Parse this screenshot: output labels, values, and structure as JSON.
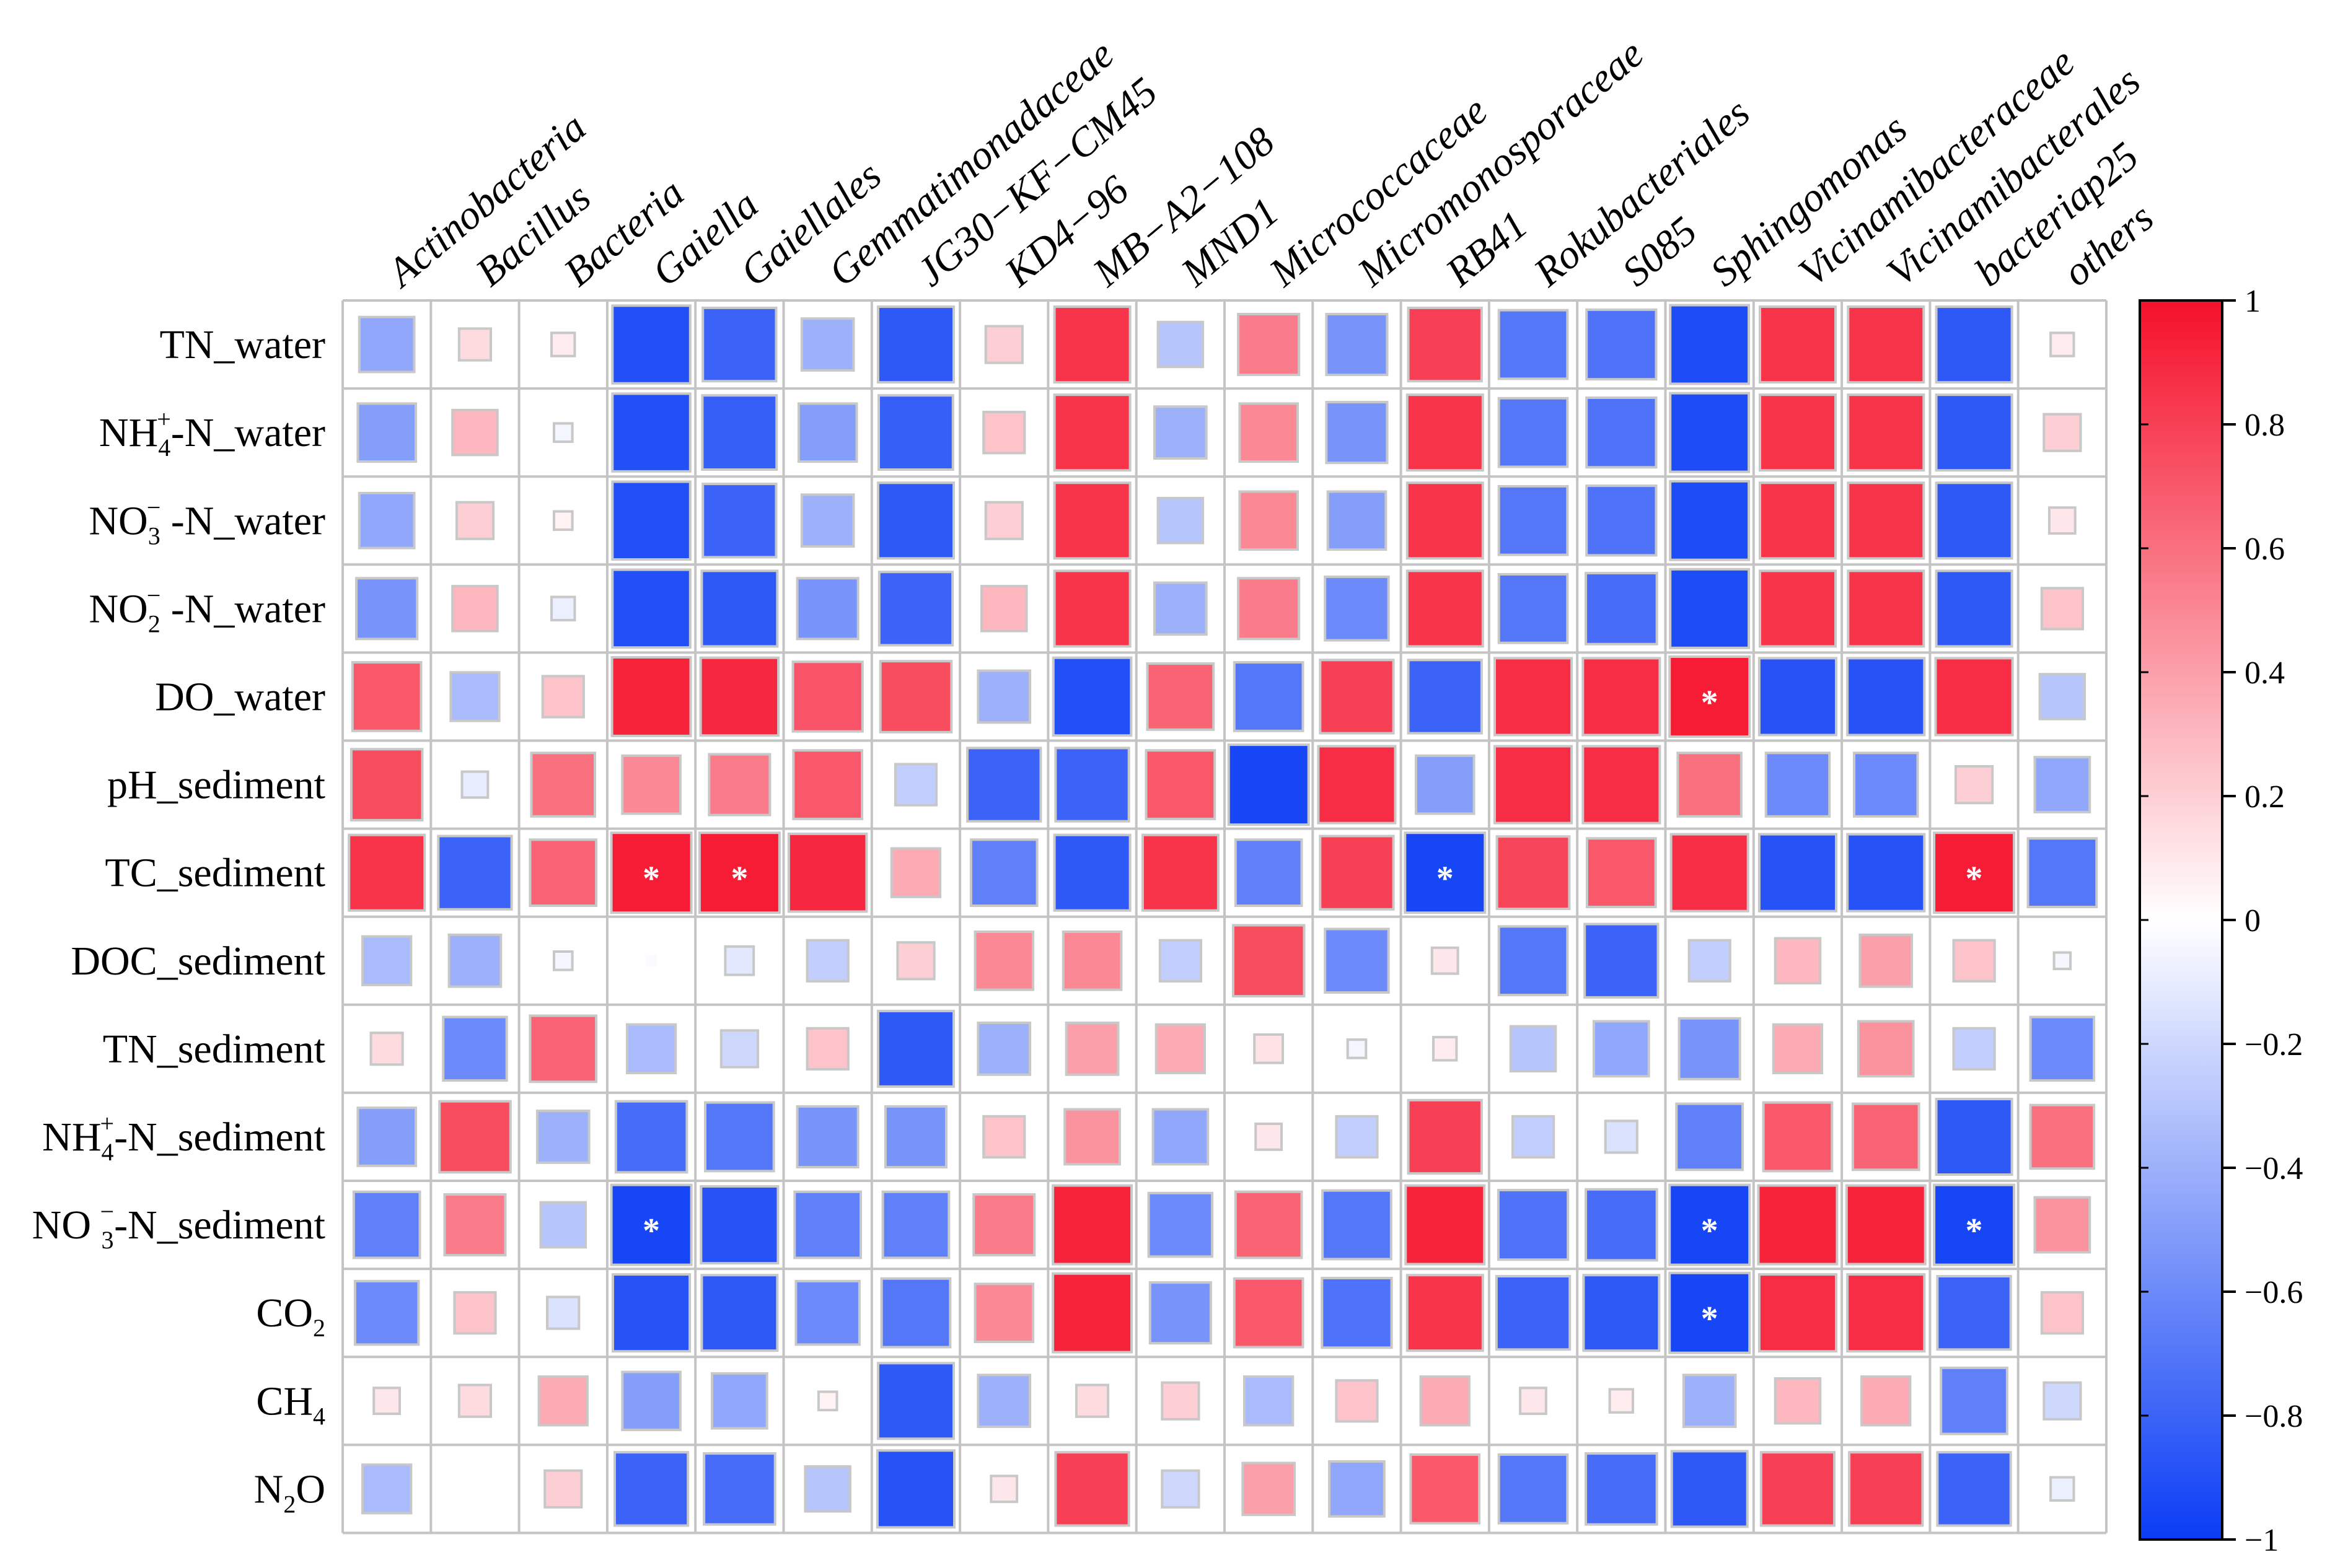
{
  "chart_data": {
    "type": "heatmap",
    "title": "",
    "xlabel": "",
    "ylabel": "",
    "columns": [
      "Actinobacteria",
      "Bacillus",
      "Bacteria",
      "Gaiella",
      "Gaiellales",
      "Gemmatimonadaceae",
      "JG30−KF−CM45",
      "KD4−96",
      "MB−A2−108",
      "MND1",
      "Micrococcaceae",
      "Micromonosporaceae",
      "RB41",
      "Rokubacteriales",
      "S085",
      "Sphingomonas",
      "Vicinamibacteraceae",
      "Vicinamibacterales",
      "bacteriap25",
      "others"
    ],
    "rows": [
      {
        "base": "TN_water",
        "sub": "",
        "sup": "",
        "suffix": ""
      },
      {
        "base": "NH",
        "sub": "4",
        "sup": "+",
        "suffix": "-N_water"
      },
      {
        "base": "NO",
        "sub": "3",
        "sup": "−",
        "suffix": " -N_water"
      },
      {
        "base": "NO",
        "sub": "2",
        "sup": "−",
        "suffix": " -N_water"
      },
      {
        "base": "DO_water",
        "sub": "",
        "sup": "",
        "suffix": ""
      },
      {
        "base": "pH_sediment",
        "sub": "",
        "sup": "",
        "suffix": ""
      },
      {
        "base": "TC_sediment",
        "sub": "",
        "sup": "",
        "suffix": ""
      },
      {
        "base": "DOC_sediment",
        "sub": "",
        "sup": "",
        "suffix": ""
      },
      {
        "base": "TN_sediment",
        "sub": "",
        "sup": "",
        "suffix": ""
      },
      {
        "base": "NH",
        "sub": "4",
        "sup": "+",
        "suffix": "-N_sediment"
      },
      {
        "base": "NO ",
        "sub": "3",
        "sup": "−",
        "suffix": "-N_sediment"
      },
      {
        "base": "CO",
        "sub": "2",
        "sup": "",
        "suffix": ""
      },
      {
        "base": "CH",
        "sub": "4",
        "sup": "",
        "suffix": ""
      },
      {
        "base": "N",
        "sub": "2",
        "sup": "",
        "suffix": "O"
      }
    ],
    "values": [
      [
        -0.45,
        0.15,
        0.08,
        -0.9,
        -0.8,
        -0.4,
        -0.85,
        0.2,
        0.85,
        -0.3,
        0.55,
        -0.55,
        0.8,
        -0.7,
        -0.72,
        -0.92,
        0.85,
        0.85,
        -0.85,
        0.08
      ],
      [
        -0.5,
        0.3,
        -0.05,
        -0.9,
        -0.82,
        -0.5,
        -0.82,
        0.25,
        0.85,
        -0.4,
        0.5,
        -0.55,
        0.85,
        -0.7,
        -0.72,
        -0.92,
        0.85,
        0.85,
        -0.85,
        0.2
      ],
      [
        -0.45,
        0.2,
        0.05,
        -0.9,
        -0.8,
        -0.4,
        -0.85,
        0.2,
        0.85,
        -0.3,
        0.5,
        -0.5,
        0.85,
        -0.7,
        -0.72,
        -0.92,
        0.85,
        0.85,
        -0.85,
        0.1
      ],
      [
        -0.55,
        0.3,
        -0.08,
        -0.9,
        -0.85,
        -0.55,
        -0.8,
        0.3,
        0.85,
        -0.4,
        0.55,
        -0.6,
        0.85,
        -0.7,
        -0.75,
        -0.92,
        0.85,
        0.85,
        -0.85,
        0.25
      ],
      [
        0.7,
        -0.35,
        0.25,
        0.92,
        0.9,
        0.72,
        0.75,
        -0.4,
        -0.9,
        0.65,
        -0.7,
        0.8,
        -0.8,
        0.88,
        0.88,
        0.95,
        -0.88,
        -0.88,
        0.88,
        -0.3
      ],
      [
        0.75,
        -0.1,
        0.6,
        0.5,
        0.55,
        0.7,
        -0.25,
        -0.8,
        -0.8,
        0.7,
        -0.95,
        0.88,
        -0.5,
        0.88,
        0.88,
        0.6,
        -0.6,
        -0.6,
        0.2,
        -0.45
      ],
      [
        0.85,
        -0.8,
        0.65,
        0.95,
        0.95,
        0.9,
        0.35,
        -0.65,
        -0.85,
        0.85,
        -0.65,
        0.8,
        -0.95,
        0.78,
        0.7,
        0.88,
        -0.88,
        -0.88,
        0.95,
        -0.7
      ],
      [
        -0.35,
        -0.4,
        -0.05,
        -0.02,
        -0.12,
        -0.25,
        0.2,
        0.5,
        0.5,
        -0.25,
        0.75,
        -0.6,
        0.1,
        -0.7,
        -0.8,
        -0.25,
        0.3,
        0.4,
        0.25,
        -0.04
      ],
      [
        0.15,
        -0.6,
        0.65,
        -0.35,
        -0.2,
        0.25,
        -0.85,
        -0.4,
        0.4,
        0.35,
        0.12,
        -0.05,
        0.08,
        -0.3,
        -0.45,
        -0.55,
        0.35,
        0.45,
        -0.25,
        -0.6
      ],
      [
        -0.5,
        0.75,
        -0.4,
        -0.75,
        -0.7,
        -0.55,
        -0.55,
        0.25,
        0.45,
        -0.45,
        0.1,
        -0.25,
        0.8,
        -0.25,
        -0.15,
        -0.65,
        0.7,
        0.65,
        -0.85,
        0.6
      ],
      [
        -0.65,
        0.55,
        -0.3,
        -0.95,
        -0.88,
        -0.65,
        -0.65,
        0.55,
        0.92,
        -0.6,
        0.65,
        -0.7,
        0.92,
        -0.72,
        -0.75,
        -0.95,
        0.92,
        0.92,
        -0.95,
        0.45
      ],
      [
        -0.6,
        0.25,
        -0.15,
        -0.88,
        -0.85,
        -0.6,
        -0.7,
        0.5,
        0.92,
        -0.55,
        0.7,
        -0.72,
        0.85,
        -0.8,
        -0.85,
        -0.95,
        0.88,
        0.88,
        -0.8,
        0.25
      ],
      [
        0.1,
        0.15,
        0.35,
        -0.5,
        -0.45,
        0.05,
        -0.85,
        -0.4,
        0.15,
        0.2,
        -0.35,
        0.25,
        0.35,
        0.1,
        0.08,
        -0.4,
        0.3,
        0.35,
        -0.65,
        -0.2
      ],
      [
        -0.35,
        0.0,
        0.2,
        -0.8,
        -0.75,
        -0.3,
        -0.88,
        0.1,
        0.8,
        -0.2,
        0.4,
        -0.45,
        0.7,
        -0.7,
        -0.75,
        -0.85,
        0.8,
        0.8,
        -0.8,
        -0.08
      ]
    ],
    "significance": [
      [
        4,
        15,
        "*"
      ],
      [
        6,
        3,
        "*"
      ],
      [
        6,
        4,
        "*"
      ],
      [
        6,
        12,
        "*"
      ],
      [
        6,
        18,
        "*"
      ],
      [
        10,
        3,
        "*"
      ],
      [
        10,
        15,
        "*"
      ],
      [
        10,
        18,
        "*"
      ],
      [
        11,
        15,
        "*"
      ]
    ],
    "colorbar": {
      "min": -1,
      "max": 1,
      "ticks": [
        "1",
        "0.8",
        "0.6",
        "0.4",
        "0.2",
        "0",
        "−0.2",
        "−0.4",
        "−0.6",
        "−0.8",
        "−1"
      ],
      "tick_values": [
        1,
        0.8,
        0.6,
        0.4,
        0.2,
        0,
        -0.2,
        -0.4,
        -0.6,
        -0.8,
        -1
      ],
      "colors": {
        "low": "#0a3cf5",
        "mid": "#ffffff",
        "high": "#f5102a"
      }
    },
    "grid": true,
    "legend": "right"
  }
}
